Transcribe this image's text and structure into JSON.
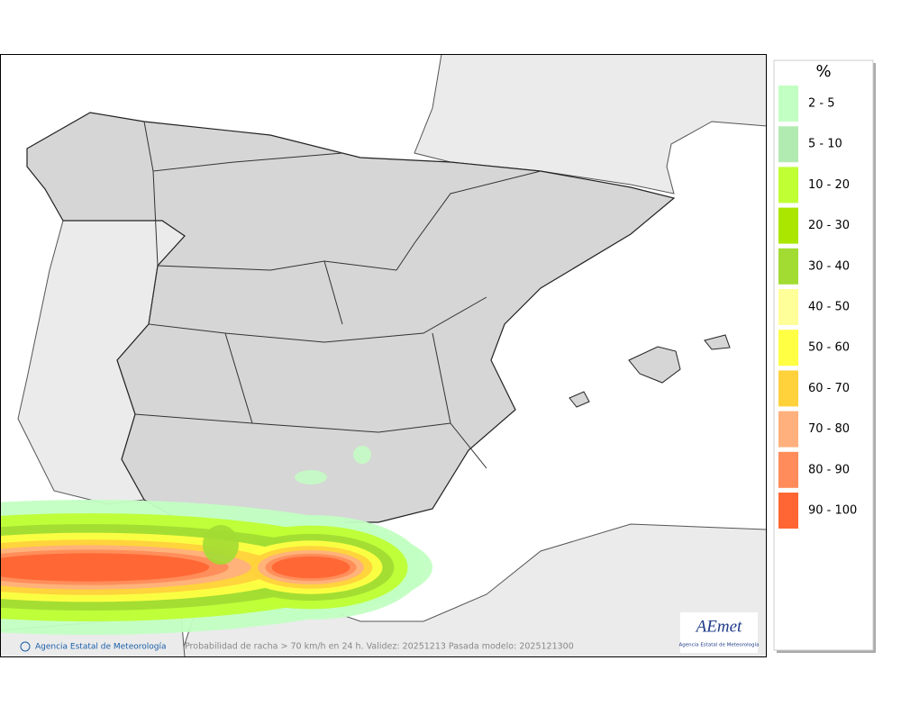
{
  "legend": {
    "title": "%",
    "items": [
      {
        "label": "2 - 5",
        "color": "#c2ffc2"
      },
      {
        "label": "5 - 10",
        "color": "#b2ebb2"
      },
      {
        "label": "10 - 20",
        "color": "#bfff33"
      },
      {
        "label": "20 - 30",
        "color": "#aae600"
      },
      {
        "label": "30 - 40",
        "color": "#a2dc33"
      },
      {
        "label": "40 - 50",
        "color": "#ffff99"
      },
      {
        "label": "50 - 60",
        "color": "#ffff44"
      },
      {
        "label": "60 - 70",
        "color": "#ffd23c"
      },
      {
        "label": "70 - 80",
        "color": "#ffb07c"
      },
      {
        "label": "80 - 90",
        "color": "#ff8c5a"
      },
      {
        "label": "90 - 100",
        "color": "#ff6633"
      }
    ]
  },
  "footer": {
    "credit": "Agencia Estatal de Meteorología",
    "caption": "Probabilidad de racha > 70 km/h en 24 h. Validez: 20251213 Pasada modelo: 2025121300"
  },
  "logo": {
    "name": "AEmet",
    "subtitle": "Agencia Estatal de Meteorología"
  }
}
